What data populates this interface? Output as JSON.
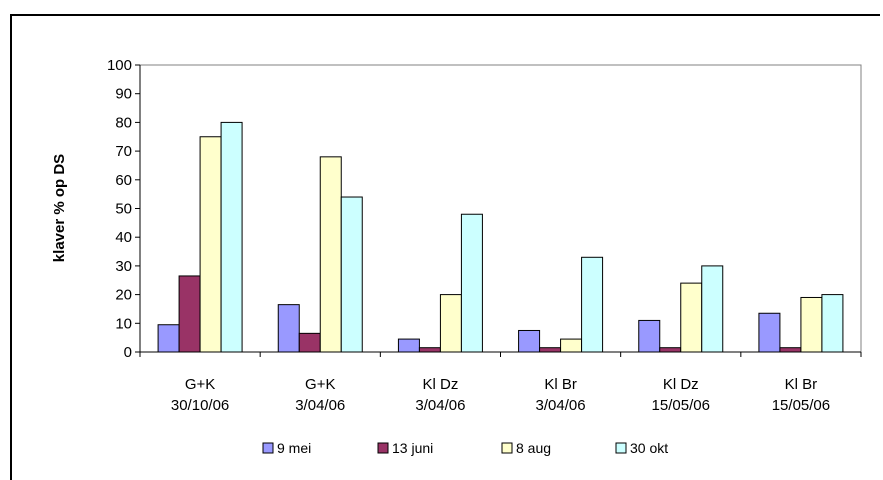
{
  "chart_data": {
    "type": "bar",
    "ylabel": "klaver % op  DS",
    "ylim": [
      0,
      100
    ],
    "yticks": [
      0,
      10,
      20,
      30,
      40,
      50,
      60,
      70,
      80,
      90,
      100
    ],
    "categories": [
      [
        "G+K",
        "30/10/06"
      ],
      [
        "G+K",
        "3/04/06"
      ],
      [
        "Kl Dz",
        "3/04/06"
      ],
      [
        "Kl Br",
        "3/04/06"
      ],
      [
        "Kl Dz",
        "15/05/06"
      ],
      [
        "Kl Br",
        "15/05/06"
      ]
    ],
    "series": [
      {
        "name": "9 mei",
        "color": "#9999ff",
        "values": [
          9.5,
          16.5,
          4.5,
          7.5,
          11,
          13.5
        ]
      },
      {
        "name": "13 juni",
        "color": "#993366",
        "values": [
          26.5,
          6.5,
          1.5,
          1.5,
          1.5,
          1.5
        ]
      },
      {
        "name": "8 aug",
        "color": "#ffffcc",
        "values": [
          75,
          68,
          20,
          4.5,
          24,
          19
        ]
      },
      {
        "name": "30 okt",
        "color": "#ccffff",
        "values": [
          80,
          54,
          48,
          33,
          30,
          20
        ]
      }
    ],
    "grid": false,
    "legend": "bottom"
  }
}
